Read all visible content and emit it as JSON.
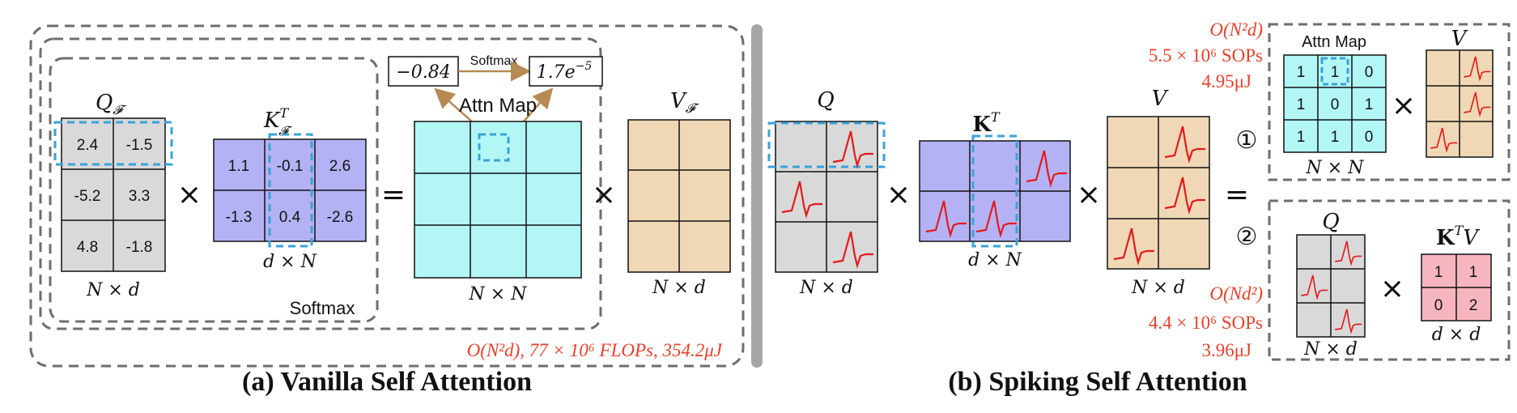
{
  "vanilla": {
    "caption": "(a) Vanilla Self Attention",
    "q_label": "Q",
    "q_sub": "𝓕",
    "k_label": "K",
    "k_sub": "𝓕",
    "k_sup": "T",
    "v_label": "V",
    "v_sub": "𝓕",
    "q_values": [
      [
        "2.4",
        "-1.5"
      ],
      [
        "-5.2",
        "3.3"
      ],
      [
        "4.8",
        "-1.8"
      ]
    ],
    "k_values": [
      [
        "1.1",
        "-0.1",
        "2.6"
      ],
      [
        "-1.3",
        "0.4",
        "-2.6"
      ]
    ],
    "q_dim": "N × d",
    "k_dim": "d × N",
    "attn_dim": "N × N",
    "v_dim": "N × d",
    "attn_title": "Attn Map",
    "softmax_label": "Softmax",
    "softmax_in": "−0.84",
    "softmax_out": "1.7e",
    "softmax_out_exp": "−5",
    "softmax_arrow": "Softmax",
    "cost": "O(N²d),  77 × 10⁶ FLOPs,  354.2μJ"
  },
  "spiking": {
    "caption": "(b) Spiking Self Attention",
    "q_label": "Q",
    "k_label": "K",
    "k_sup": "T",
    "v_label": "V",
    "q_dim": "N × d",
    "k_dim": "d × N",
    "v_dim": "N × d",
    "path1_num": "①",
    "path2_num": "②",
    "path1_complexity": "O(N²d)",
    "path1_sops": "5.5 × 10⁶ SOPs",
    "path1_energy": "4.95μJ",
    "path2_complexity": "O(Nd²)",
    "path2_sops": "4.4 × 10⁶ SOPs",
    "path2_energy": "3.96μJ",
    "attn_title": "Attn Map",
    "attn_values": [
      [
        "1",
        "1",
        "0"
      ],
      [
        "1",
        "0",
        "1"
      ],
      [
        "1",
        "1",
        "0"
      ]
    ],
    "attn_dim": "N × N",
    "v_label2": "V",
    "q2_label": "Q",
    "q2_dim": "N × d",
    "ktv_label": "K",
    "ktv_sup": "T",
    "ktv_suffix": "V",
    "ktv_values": [
      [
        "1",
        "1"
      ],
      [
        "0",
        "2"
      ]
    ],
    "ktv_dim": "d × d"
  },
  "operators": {
    "times": "×",
    "equals": "="
  },
  "colors": {
    "q_gray": "#d9d9d9",
    "k_purple": "#b4b2f5",
    "attn_cyan": "#b2f7f6",
    "v_tan": "#f0d8b6",
    "ktv_pink": "#f7b6bf",
    "highlight_blue": "#3aa3d6",
    "annotation_red": "#e8402a",
    "dashed_gray": "#6e6e6e",
    "divider_gray": "#a6a6a6",
    "spike_red": "#e31a1c",
    "arrow_brown": "#b68a52"
  }
}
